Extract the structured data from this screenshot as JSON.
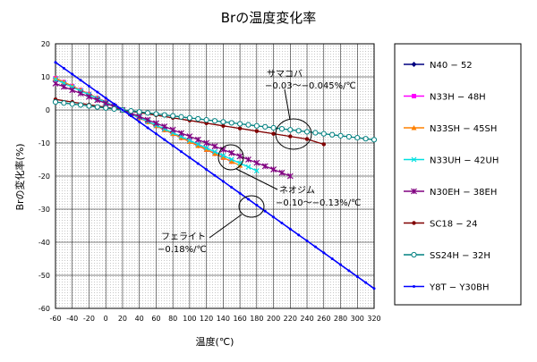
{
  "chart_data": {
    "type": "line",
    "title": "Brの温度変化率",
    "xlabel": "温度(℃)",
    "ylabel": "Brの変化率(%)",
    "xlim": [
      -60,
      320
    ],
    "ylim": [
      -60,
      20
    ],
    "xticks": [
      -60,
      -40,
      -20,
      0,
      20,
      40,
      60,
      80,
      100,
      120,
      140,
      160,
      180,
      200,
      220,
      240,
      260,
      280,
      300,
      320
    ],
    "yticks": [
      20,
      10,
      0,
      -10,
      -20,
      -30,
      -40,
      -50,
      -60
    ],
    "grid": true,
    "legend_position": "right",
    "series": [
      {
        "name": "N40 − 52",
        "color": "#000080",
        "marker": "diamond",
        "x": [
          -60,
          -50,
          -40,
          -30,
          -20,
          -10,
          0,
          10,
          20,
          30,
          40,
          50,
          60,
          70,
          80,
          90,
          100,
          110,
          120,
          130,
          140
        ],
        "y": [
          9.6,
          8.4,
          7.2,
          6.0,
          4.8,
          3.6,
          2.4,
          1.2,
          0,
          -1.2,
          -2.4,
          -3.6,
          -4.8,
          -6.0,
          -7.2,
          -8.4,
          -9.6,
          -10.8,
          -12.0,
          -13.2,
          -14.4
        ]
      },
      {
        "name": "N33H − 48H",
        "color": "#ff00ff",
        "marker": "square",
        "x": [
          -60,
          -50,
          -40,
          -30,
          -20,
          -10,
          0,
          10,
          20,
          30,
          40,
          50,
          60,
          70,
          80,
          90,
          100,
          110,
          120,
          130,
          140,
          150
        ],
        "y": [
          9.6,
          8.4,
          7.2,
          6.0,
          4.8,
          3.6,
          2.4,
          1.2,
          0,
          -1.2,
          -2.4,
          -3.6,
          -4.8,
          -6.0,
          -7.2,
          -8.4,
          -9.6,
          -10.8,
          -12.0,
          -13.2,
          -14.4,
          -15.6
        ]
      },
      {
        "name": "N33SH − 45SH",
        "color": "#ff8000",
        "marker": "triangle",
        "x": [
          -60,
          -50,
          -40,
          -30,
          -20,
          -10,
          0,
          10,
          20,
          30,
          40,
          50,
          60,
          70,
          80,
          90,
          100,
          110,
          120,
          130,
          140,
          150,
          160
        ],
        "y": [
          9.6,
          8.4,
          7.2,
          6.0,
          4.8,
          3.6,
          2.4,
          1.2,
          0,
          -1.2,
          -2.4,
          -3.6,
          -4.8,
          -6.0,
          -7.2,
          -8.4,
          -9.6,
          -10.8,
          -12.0,
          -13.2,
          -14.4,
          -15.6,
          -16.8
        ]
      },
      {
        "name": "N33UH − 42UH",
        "color": "#00e0e0",
        "marker": "x",
        "x": [
          -60,
          -50,
          -40,
          -30,
          -20,
          -10,
          0,
          10,
          20,
          30,
          40,
          50,
          60,
          70,
          80,
          90,
          100,
          110,
          120,
          130,
          140,
          150,
          160,
          170,
          180
        ],
        "y": [
          9.2,
          8.05,
          6.9,
          5.75,
          4.6,
          3.45,
          2.3,
          1.15,
          0,
          -1.15,
          -2.3,
          -3.45,
          -4.6,
          -5.75,
          -6.9,
          -8.05,
          -9.2,
          -10.35,
          -11.5,
          -12.65,
          -13.8,
          -14.95,
          -16.1,
          -17.25,
          -18.4
        ]
      },
      {
        "name": "N30EH − 38EH",
        "color": "#800080",
        "marker": "star",
        "x": [
          -60,
          -50,
          -40,
          -30,
          -20,
          -10,
          0,
          10,
          20,
          30,
          40,
          50,
          60,
          70,
          80,
          90,
          100,
          110,
          120,
          130,
          140,
          150,
          160,
          170,
          180,
          190,
          200,
          210,
          220
        ],
        "y": [
          8.0,
          7.0,
          6.0,
          5.0,
          4.0,
          3.0,
          2.0,
          1.0,
          0,
          -1.0,
          -2.0,
          -3.0,
          -4.0,
          -5.0,
          -6.0,
          -7.0,
          -8.0,
          -9.0,
          -10.0,
          -11.0,
          -12.0,
          -13.0,
          -14.0,
          -15.0,
          -16.0,
          -17.0,
          -18.0,
          -19.0,
          -20.0
        ]
      },
      {
        "name": "SC18 − 24",
        "color": "#800000",
        "marker": "circle",
        "x": [
          -60,
          -40,
          -20,
          0,
          20,
          40,
          60,
          80,
          100,
          120,
          140,
          160,
          180,
          200,
          220,
          240,
          260
        ],
        "y": [
          3.2,
          2.4,
          1.6,
          0.8,
          0,
          -0.8,
          -1.6,
          -2.4,
          -3.2,
          -4.0,
          -4.8,
          -5.6,
          -6.4,
          -7.2,
          -8.0,
          -8.8,
          -10.4
        ]
      },
      {
        "name": "SS24H − 32H",
        "color": "#008080",
        "marker": "circle-open",
        "x": [
          -60,
          -50,
          -40,
          -30,
          -20,
          -10,
          0,
          10,
          20,
          30,
          40,
          50,
          60,
          70,
          80,
          90,
          100,
          110,
          120,
          130,
          140,
          150,
          160,
          170,
          180,
          190,
          200,
          210,
          220,
          230,
          240,
          250,
          260,
          270,
          280,
          290,
          300,
          310,
          320
        ],
        "y": [
          2.4,
          2.1,
          1.8,
          1.5,
          1.2,
          0.9,
          0.6,
          0.3,
          0,
          -0.3,
          -0.6,
          -0.9,
          -1.2,
          -1.5,
          -1.8,
          -2.1,
          -2.4,
          -2.7,
          -3.0,
          -3.3,
          -3.6,
          -3.9,
          -4.2,
          -4.5,
          -4.8,
          -5.1,
          -5.4,
          -5.7,
          -6.0,
          -6.3,
          -6.6,
          -6.9,
          -7.2,
          -7.5,
          -7.8,
          -8.1,
          -8.4,
          -8.7,
          -9.0
        ]
      },
      {
        "name": "Y8T − Y30BH",
        "color": "#0000ff",
        "marker": "dot",
        "x": [
          -60,
          -50,
          -40,
          -30,
          -20,
          -10,
          0,
          10,
          20,
          30,
          40,
          50,
          60,
          70,
          80,
          90,
          100,
          110,
          120,
          130,
          140,
          150,
          160,
          170,
          180,
          190,
          200,
          210,
          220,
          230,
          240,
          250,
          260,
          270,
          280,
          290,
          300,
          310,
          320
        ],
        "y": [
          14.4,
          12.6,
          10.8,
          9.0,
          7.2,
          5.4,
          3.6,
          1.8,
          0,
          -1.8,
          -3.6,
          -5.4,
          -7.2,
          -9.0,
          -10.8,
          -12.6,
          -14.4,
          -16.2,
          -18.0,
          -19.8,
          -21.6,
          -23.4,
          -25.2,
          -27.0,
          -28.8,
          -30.6,
          -32.4,
          -34.2,
          -36.0,
          -37.8,
          -39.6,
          -41.4,
          -43.2,
          -45.0,
          -46.8,
          -48.6,
          -50.4,
          -52.2,
          -54.0
        ]
      }
    ],
    "annotations": [
      {
        "name": "samakoba",
        "line1": "サマコバ",
        "line2": "−0.03〜−0.045%/℃"
      },
      {
        "name": "neojimu",
        "line1": "ネオジム",
        "line2": "−0.10〜−0.13%/℃"
      },
      {
        "name": "ferrite",
        "line1": "フェライト",
        "line2": "−0.18%/℃"
      }
    ]
  }
}
